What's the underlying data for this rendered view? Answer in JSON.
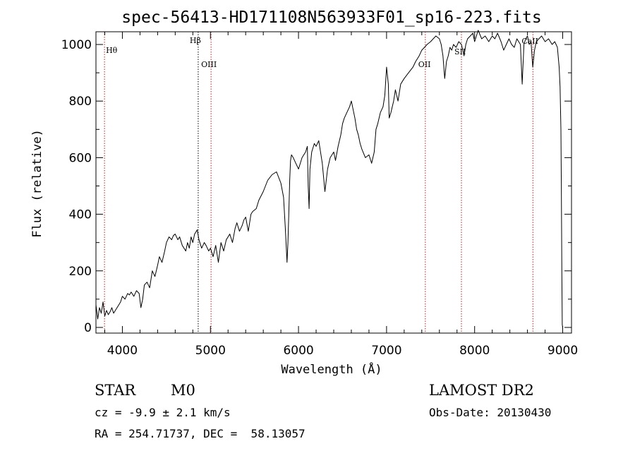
{
  "chart_data": {
    "type": "line",
    "title": "spec-56413-HD171108N563933F01_sp16-223.fits",
    "xlabel": "Wavelength (Å)",
    "ylabel": "Flux (relative)",
    "xlim": [
      3700,
      9100
    ],
    "ylim": [
      -20,
      1045
    ],
    "xticks": [
      4000,
      5000,
      6000,
      7000,
      8000,
      9000
    ],
    "yticks": [
      0,
      200,
      400,
      600,
      800,
      1000
    ],
    "grid": false,
    "series": [
      {
        "x": [
          3700,
          3720,
          3740,
          3760,
          3780,
          3800,
          3820,
          3840,
          3860,
          3880,
          3900,
          3920,
          3950,
          3980,
          4000,
          4030,
          4060,
          4080,
          4100,
          4130,
          4160,
          4190,
          4210,
          4230,
          4250,
          4280,
          4310,
          4340,
          4370,
          4400,
          4420,
          4450,
          4480,
          4500,
          4530,
          4560,
          4580,
          4600,
          4630,
          4650,
          4680,
          4720,
          4740,
          4760,
          4780,
          4800,
          4820,
          4850,
          4870,
          4900,
          4930,
          4950,
          4980,
          5000,
          5030,
          5060,
          5090,
          5120,
          5150,
          5180,
          5200,
          5220,
          5250,
          5280,
          5300,
          5330,
          5360,
          5380,
          5400,
          5430,
          5460,
          5480,
          5520,
          5550,
          5600,
          5650,
          5700,
          5750,
          5800,
          5830,
          5850,
          5870,
          5880,
          5890,
          5900,
          5910,
          5920,
          5940,
          5970,
          6000,
          6040,
          6080,
          6100,
          6110,
          6120,
          6130,
          6150,
          6180,
          6200,
          6230,
          6270,
          6300,
          6330,
          6360,
          6400,
          6420,
          6450,
          6480,
          6500,
          6520,
          6550,
          6580,
          6600,
          6620,
          6640,
          6660,
          6680,
          6700,
          6720,
          6760,
          6800,
          6830,
          6860,
          6880,
          6900,
          6930,
          6960,
          6980,
          7000,
          7020,
          7030,
          7050,
          7080,
          7100,
          7130,
          7160,
          7200,
          7250,
          7300,
          7330,
          7370,
          7400,
          7430,
          7460,
          7500,
          7530,
          7560,
          7600,
          7620,
          7640,
          7660,
          7680,
          7700,
          7720,
          7740,
          7760,
          7790,
          7820,
          7850,
          7880,
          7900,
          7920,
          7950,
          7980,
          8000,
          8040,
          8080,
          8120,
          8160,
          8200,
          8230,
          8260,
          8300,
          8330,
          8360,
          8390,
          8420,
          8450,
          8480,
          8500,
          8520,
          8540,
          8560,
          8580,
          8600,
          8620,
          8640,
          8660,
          8680,
          8700,
          8730,
          8760,
          8800,
          8840,
          8880,
          8910,
          8940,
          8960,
          8970,
          8980,
          8985,
          8990,
          8995,
          9000
        ],
        "y": [
          80,
          30,
          70,
          50,
          90,
          40,
          60,
          45,
          55,
          70,
          50,
          60,
          75,
          90,
          110,
          100,
          120,
          115,
          125,
          110,
          130,
          120,
          70,
          100,
          150,
          160,
          140,
          200,
          180,
          220,
          250,
          230,
          270,
          300,
          320,
          310,
          325,
          330,
          310,
          320,
          290,
          270,
          300,
          280,
          320,
          300,
          330,
          345,
          310,
          280,
          300,
          290,
          270,
          280,
          250,
          290,
          230,
          300,
          270,
          310,
          320,
          330,
          300,
          350,
          370,
          340,
          360,
          380,
          390,
          340,
          400,
          410,
          420,
          450,
          480,
          520,
          540,
          550,
          510,
          460,
          350,
          230,
          300,
          400,
          520,
          590,
          610,
          600,
          580,
          560,
          600,
          620,
          640,
          500,
          420,
          560,
          620,
          650,
          640,
          660,
          580,
          480,
          560,
          600,
          620,
          590,
          640,
          680,
          720,
          740,
          760,
          780,
          800,
          770,
          740,
          700,
          680,
          650,
          630,
          600,
          610,
          580,
          620,
          700,
          720,
          760,
          780,
          820,
          920,
          860,
          740,
          760,
          800,
          840,
          800,
          860,
          880,
          900,
          920,
          940,
          960,
          980,
          990,
          1000,
          1010,
          1020,
          1030,
          1020,
          1000,
          960,
          880,
          940,
          960,
          990,
          980,
          1000,
          990,
          1010,
          1000,
          960,
          1000,
          1020,
          1030,
          1040,
          1010,
          1050,
          1020,
          1030,
          1010,
          1030,
          1020,
          1040,
          1010,
          980,
          1000,
          1020,
          1000,
          990,
          1020,
          1010,
          1000,
          860,
          1000,
          1020,
          1030,
          1000,
          1010,
          920,
          980,
          1010,
          1020,
          1030,
          1010,
          1020,
          1000,
          1010,
          990,
          920,
          850,
          700,
          500,
          200,
          10,
          0
        ]
      }
    ],
    "lines": [
      {
        "x": 3797,
        "label": "Hθ"
      },
      {
        "x": 4861,
        "label": "Hβ"
      },
      {
        "x": 5007,
        "label": "OIII"
      },
      {
        "x": 7440,
        "label": "OII"
      },
      {
        "x": 7850,
        "label": "SII"
      },
      {
        "x": 8662,
        "label": "CaII"
      }
    ]
  },
  "info": {
    "object_type": "STAR",
    "subclass": "M0",
    "survey": "LAMOST DR2",
    "cz": "cz = -9.9 ± 2.1 km/s",
    "obs_date": "Obs-Date: 20130430",
    "coords": "RA = 254.71737, DEC =  58.13057"
  }
}
